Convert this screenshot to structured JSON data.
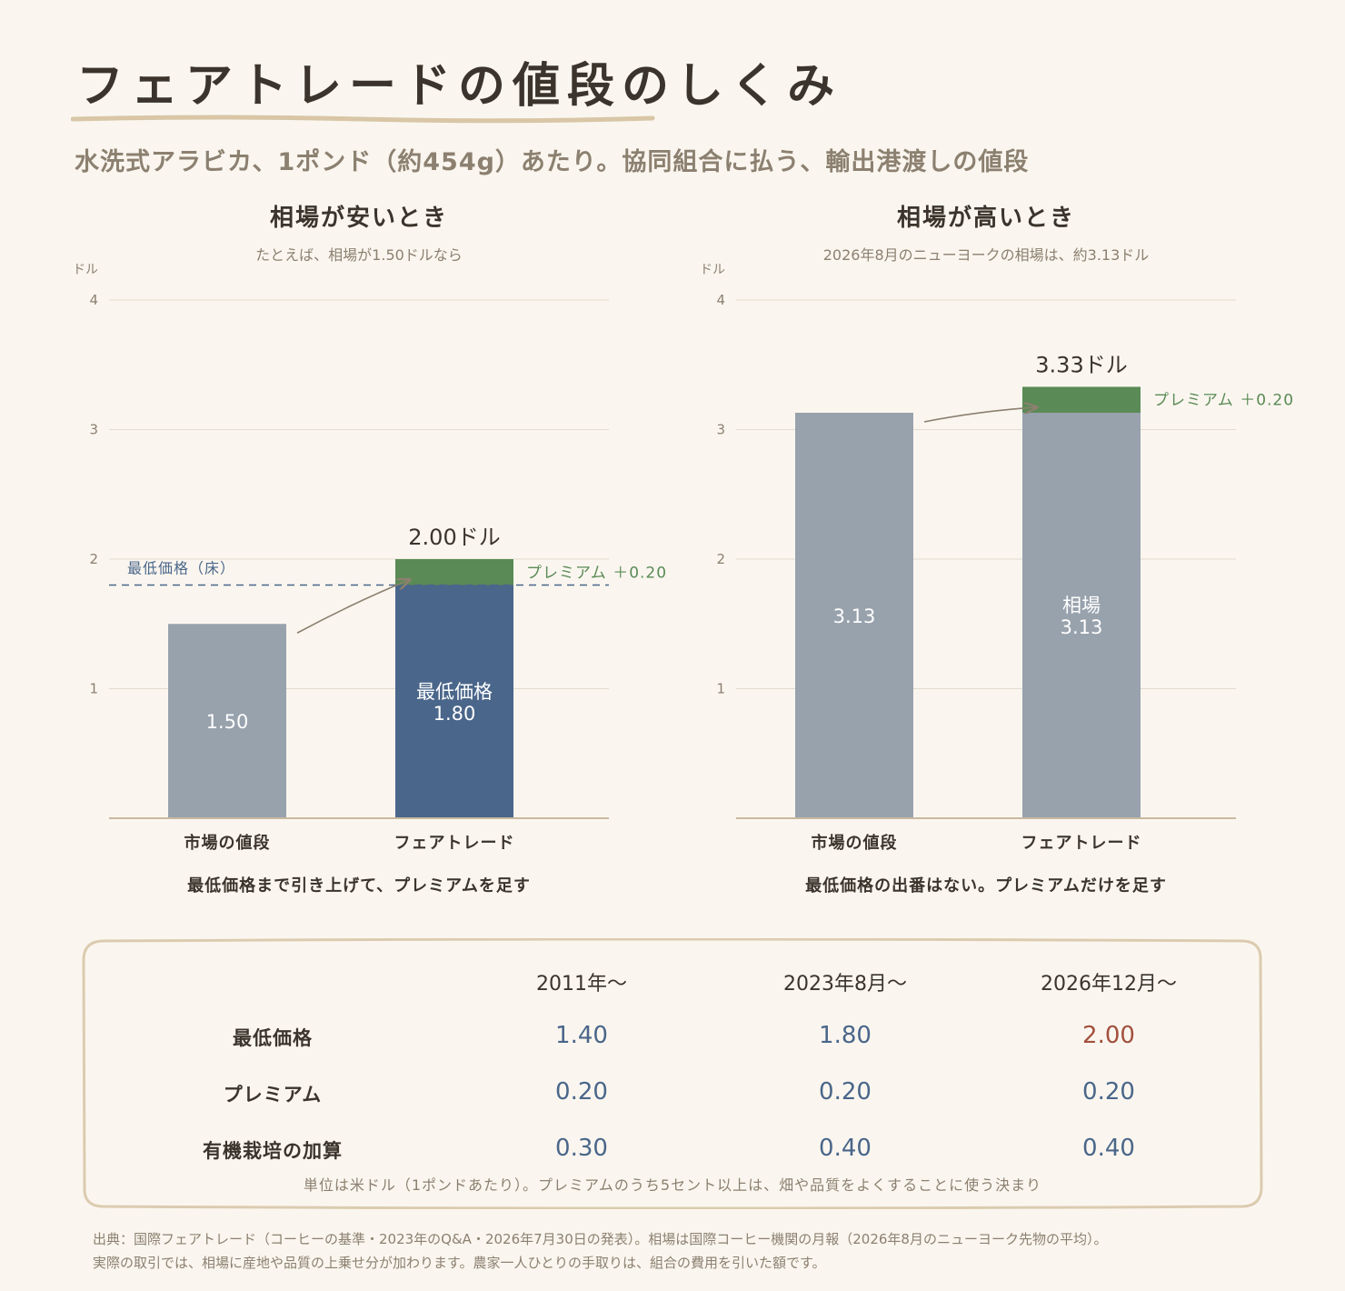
{
  "page": {
    "title": "フェアトレードの値段のしくみ",
    "subtitle": "水洗式アラビカ、1ポンド（約454g）あたり。協同組合に払う、輸出港渡しの値段"
  },
  "colors": {
    "market": "#98a2ad",
    "floor": "#4a668a",
    "premium": "#5a8a55",
    "highlight": "#a3503e"
  },
  "chart_data": [
    {
      "type": "bar",
      "stacked": true,
      "title": "相場が安いとき",
      "subtitle": "たとえば、相場が1.50ドルなら",
      "ylabel": "ドル",
      "ylim": [
        0,
        4
      ],
      "yticks": [
        "1",
        "2",
        "3",
        "4"
      ],
      "categories": [
        "市場の値段",
        "フェアトレード"
      ],
      "floor_line": {
        "value": 1.8,
        "label": "最低価格（床）"
      },
      "bars": [
        {
          "segments": [
            {
              "value": 1.5,
              "color": "market",
              "label": "1.50"
            }
          ]
        },
        {
          "segments": [
            {
              "value": 1.8,
              "color": "floor",
              "label": "最低価格\n1.80"
            },
            {
              "value": 0.2,
              "color": "premium",
              "label": "プレミアム ＋0.20"
            }
          ],
          "total_label": "2.00ドル"
        }
      ],
      "caption": "最低価格まで引き上げて、プレミアムを足す"
    },
    {
      "type": "bar",
      "stacked": true,
      "title": "相場が高いとき",
      "subtitle": "2026年8月のニューヨークの相場は、約3.13ドル",
      "ylabel": "ドル",
      "ylim": [
        0,
        4
      ],
      "yticks": [
        "1",
        "2",
        "3",
        "4"
      ],
      "categories": [
        "市場の値段",
        "フェアトレード"
      ],
      "bars": [
        {
          "segments": [
            {
              "value": 3.13,
              "color": "market",
              "label": "3.13"
            }
          ]
        },
        {
          "segments": [
            {
              "value": 3.13,
              "color": "market",
              "label": "相場\n3.13"
            },
            {
              "value": 0.2,
              "color": "premium",
              "label": "プレミアム ＋0.20"
            }
          ],
          "total_label": "3.33ドル"
        }
      ],
      "caption": "最低価格の出番はない。プレミアムだけを足す"
    }
  ],
  "table": {
    "columns": [
      "2011年～",
      "2023年8月～",
      "2026年12月～"
    ],
    "rows": [
      {
        "label": "最低価格",
        "values": [
          "1.40",
          "1.80",
          "2.00"
        ]
      },
      {
        "label": "プレミアム",
        "values": [
          "0.20",
          "0.20",
          "0.20"
        ]
      },
      {
        "label": "有機栽培の加算",
        "values": [
          "0.30",
          "0.40",
          "0.40"
        ]
      }
    ],
    "note": "単位は米ドル（1ポンドあたり）。プレミアムのうち5セント以上は、畑や品質をよくすることに使う決まり"
  },
  "source": {
    "line1": "出典：国際フェアトレード（コーヒーの基準・2023年のQ&A・2026年7月30日の発表）。相場は国際コーヒー機関の月報（2026年8月のニューヨーク先物の平均）。",
    "line2": "実際の取引では、相場に産地や品質の上乗せ分が加わります。農家一人ひとりの手取りは、組合の費用を引いた額です。"
  }
}
